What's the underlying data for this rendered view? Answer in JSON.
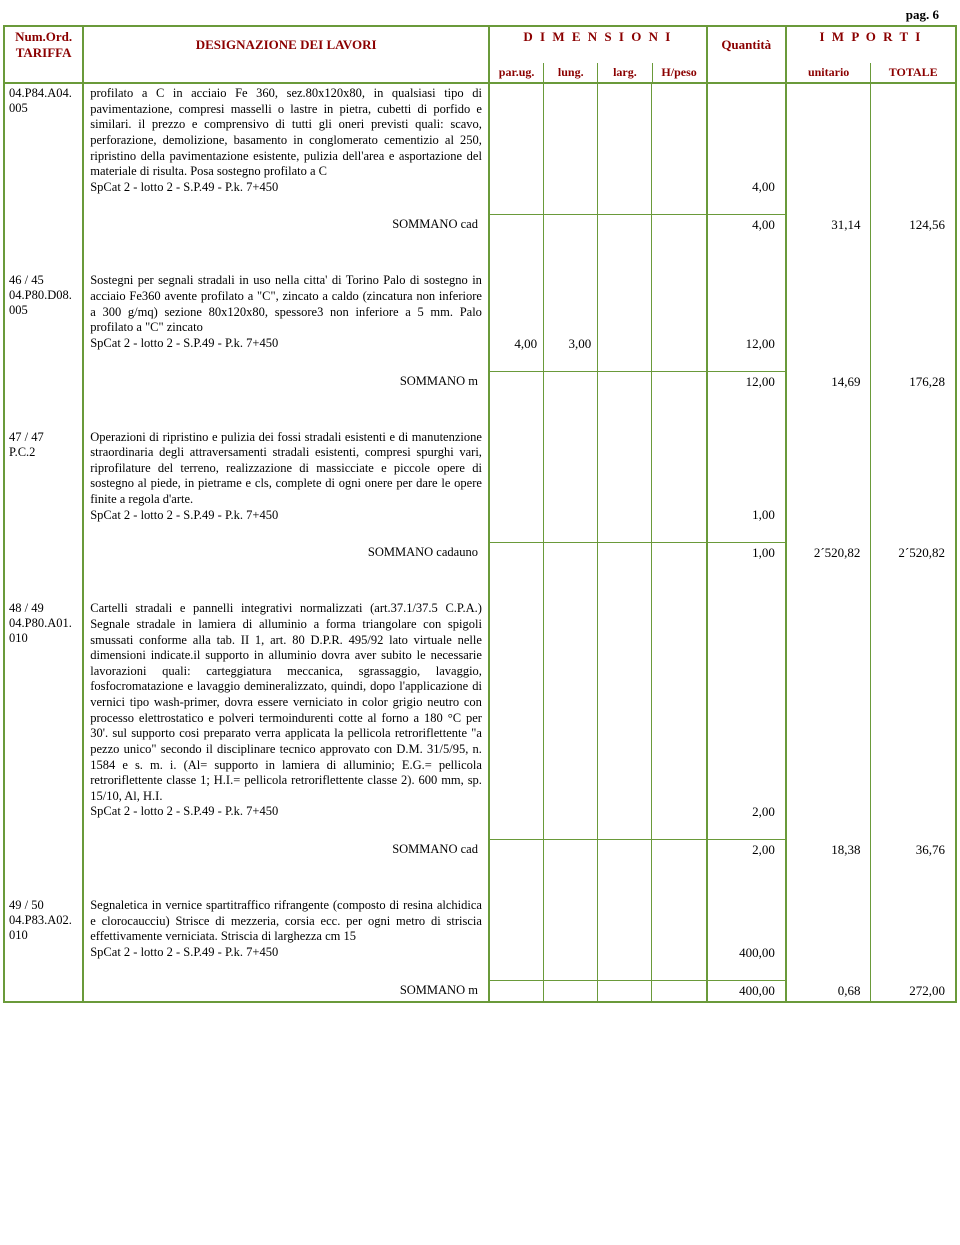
{
  "page_label": "pag. 6",
  "header": {
    "tariffa_l1": "Num.Ord.",
    "tariffa_l2": "TARIFFA",
    "design": "DESIGNAZIONE DEI LAVORI",
    "dim": "D I M E N S I O N I",
    "qty": "Quantità",
    "imp": "I M P O R T I",
    "parug": "par.ug.",
    "lung": "lung.",
    "larg": "larg.",
    "hpeso": "H/peso",
    "unitario": "unitario",
    "totale": "TOTALE"
  },
  "items": [
    {
      "code_l1": "04.P84.A04.",
      "code_l2": "005",
      "desc": "profilato a C in acciaio Fe 360, sez.80x120x80, in qualsiasi tipo di pavimentazione, compresi masselli o lastre in pietra, cubetti di porfido e similari. il prezzo e comprensivo di tutti gli oneri previsti quali: scavo, perforazione, demolizione, basamento in conglomerato cementizio al 250, ripristino della pavimentazione esistente, pulizia dell'area e asportazione del materiale di risulta. Posa sostegno profilato a C",
      "spcat": "SpCat 2 - lotto 2 - S.P.49 - P.k. 7+450",
      "qty_line": "4,00",
      "som_label": "SOMMANO cad",
      "som_qty": "4,00",
      "unit": "31,14",
      "tot": "124,56"
    },
    {
      "code_l1": "46 / 45",
      "code_l2": "04.P80.D08.",
      "code_l3": "005",
      "desc": "Sostegni per segnali stradali in uso nella citta' di Torino Palo di sostegno in acciaio Fe360 avente profilato a \"C\", zincato a caldo (zincatura non inferiore a 300 g/mq) sezione 80x120x80, spessore3 non inferiore a 5 mm. Palo profilato a \"C\" zincato",
      "spcat": "SpCat 2 - lotto 2 - S.P.49 - P.k. 7+450",
      "parug": "4,00",
      "lung": "3,00",
      "qty_line": "12,00",
      "som_label": "SOMMANO m",
      "som_qty": "12,00",
      "unit": "14,69",
      "tot": "176,28"
    },
    {
      "code_l1": "47 / 47",
      "code_l2": "P.C.2",
      "desc": "Operazioni di ripristino e pulizia dei fossi stradali esistenti e di manutenzione straordinaria degli attraversamenti stradali esistenti, compresi spurghi vari, riprofilature del terreno, realizzazione di massicciate e piccole opere di sostegno al piede, in pietrame e cls, complete di ogni onere per dare le opere finite a regola d'arte.",
      "spcat": "SpCat 2 - lotto 2 - S.P.49 - P.k. 7+450",
      "qty_line": "1,00",
      "som_label": "SOMMANO cadauno",
      "som_qty": "1,00",
      "unit": "2´520,82",
      "tot": "2´520,82"
    },
    {
      "code_l1": "48 / 49",
      "code_l2": "04.P80.A01.",
      "code_l3": "010",
      "desc": "Cartelli stradali e pannelli integrativi normalizzati (art.37.1/37.5 C.P.A.) Segnale stradale in lamiera di alluminio a forma triangolare con spigoli smussati conforme alla tab. II 1, art. 80 D.P.R. 495/92 lato virtuale nelle dimensioni indicate.il supporto in alluminio dovra aver subito le necessarie lavorazioni quali: carteggiatura meccanica, sgrassaggio, lavaggio, fosfocromatazione e lavaggio demineralizzato, quindi, dopo l'applicazione di vernici tipo wash-primer, dovra essere verniciato in color grigio neutro con processo elettrostatico e polveri termoindurenti cotte al forno a 180 °C per 30'. sul supporto cosi preparato verra applicata la pellicola retroriflettente \"a pezzo unico\" secondo il disciplinare tecnico approvato con D.M. 31/5/95, n. 1584 e s. m. i. (Al= supporto in lamiera di alluminio; E.G.= pellicola retroriflettente classe 1; H.I.= pellicola retroriflettente classe 2). 600 mm, sp. 15/10, Al, H.I.",
      "spcat": "SpCat 2 - lotto 2 - S.P.49 - P.k. 7+450",
      "qty_line": "2,00",
      "som_label": "SOMMANO cad",
      "som_qty": "2,00",
      "unit": "18,38",
      "tot": "36,76"
    },
    {
      "code_l1": "49 / 50",
      "code_l2": "04.P83.A02.",
      "code_l3": "010",
      "desc": "Segnaletica in vernice spartitraffico rifrangente (composto di resina alchidica e clorocaucciu) Strisce di mezzeria, corsia ecc. per ogni metro di striscia effettivamente verniciata. Striscia di larghezza cm 15",
      "spcat": "SpCat 2 - lotto 2 - S.P.49 - P.k. 7+450",
      "qty_line": "400,00",
      "som_label": "SOMMANO m",
      "som_qty": "400,00",
      "unit": "0,68",
      "tot": "272,00"
    }
  ]
}
